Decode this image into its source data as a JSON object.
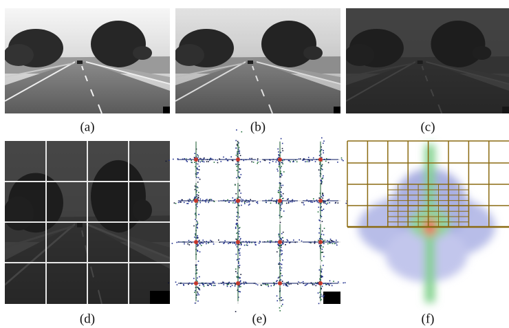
{
  "figure": {
    "captions": [
      "(a)",
      "(b)",
      "(c)",
      "(d)",
      "(e)",
      "(f)"
    ]
  }
}
